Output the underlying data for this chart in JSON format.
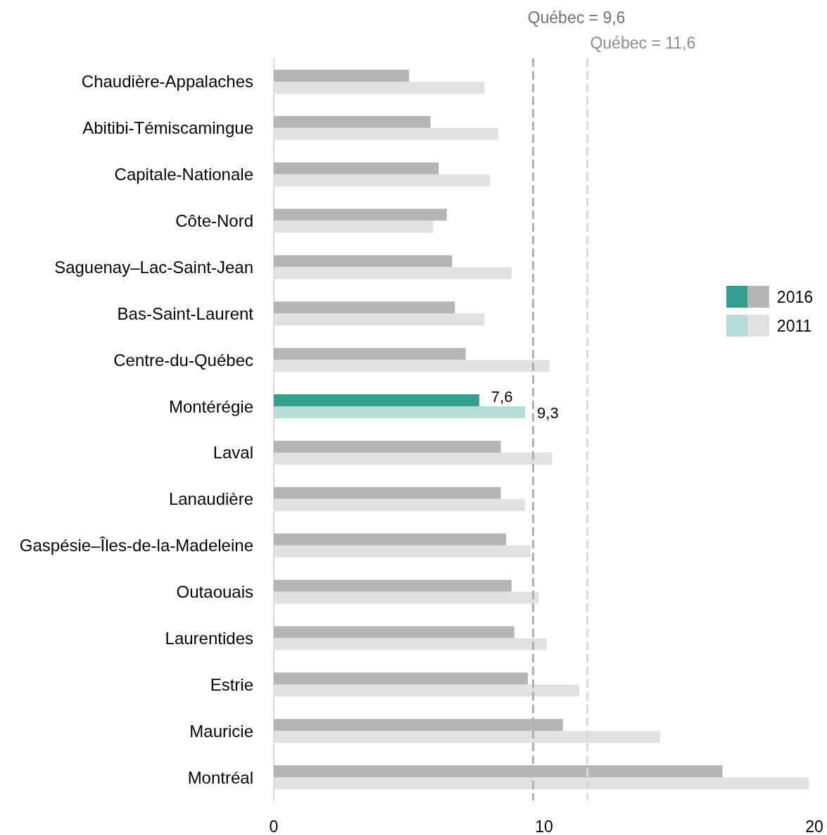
{
  "chart_data": {
    "type": "bar",
    "orientation": "horizontal",
    "categories": [
      "Chaudière-Appalaches",
      "Abitibi-Témiscamingue",
      "Capitale-Nationale",
      "Côte-Nord",
      "Saguenay–Lac-Saint-Jean",
      "Bas-Saint-Laurent",
      "Centre-du-Québec",
      "Montérégie",
      "Laval",
      "Lanaudière",
      "Gaspésie–Îles-de-la-Madeleine",
      "Outaouais",
      "Laurentides",
      "Estrie",
      "Mauricie",
      "Montréal"
    ],
    "series": [
      {
        "name": "2016",
        "color": "#b5b5b5",
        "colors": [
          "#b5b5b5",
          "#b5b5b5",
          "#b5b5b5",
          "#b5b5b5",
          "#b5b5b5",
          "#b5b5b5",
          "#b5b5b5",
          "#359e8f",
          "#b5b5b5",
          "#b5b5b5",
          "#b5b5b5",
          "#b5b5b5",
          "#b5b5b5",
          "#b5b5b5",
          "#b5b5b5",
          "#b5b5b5"
        ],
        "values": [
          5.0,
          5.8,
          6.1,
          6.4,
          6.6,
          6.7,
          7.1,
          7.6,
          8.4,
          8.4,
          8.6,
          8.8,
          8.9,
          9.4,
          10.7,
          16.6
        ],
        "value_labels": [
          null,
          null,
          null,
          null,
          null,
          null,
          null,
          "7,6",
          null,
          null,
          null,
          null,
          null,
          null,
          null,
          null
        ]
      },
      {
        "name": "2011",
        "color": "#e1e1e1",
        "colors": [
          "#e1e1e1",
          "#e1e1e1",
          "#e1e1e1",
          "#e1e1e1",
          "#e1e1e1",
          "#e1e1e1",
          "#e1e1e1",
          "#b5dcd7",
          "#e1e1e1",
          "#e1e1e1",
          "#e1e1e1",
          "#e1e1e1",
          "#e1e1e1",
          "#e1e1e1",
          "#e1e1e1",
          "#e1e1e1"
        ],
        "values": [
          7.8,
          8.3,
          8.0,
          5.9,
          8.8,
          7.8,
          10.2,
          9.3,
          10.3,
          9.3,
          9.5,
          9.8,
          10.1,
          11.3,
          14.3,
          19.8
        ],
        "value_labels": [
          null,
          null,
          null,
          null,
          null,
          null,
          null,
          "9,3",
          null,
          null,
          null,
          null,
          null,
          null,
          null,
          null
        ]
      }
    ],
    "xlim": [
      0,
      20
    ],
    "xticks": [
      0,
      10,
      20
    ],
    "ref_lines": [
      {
        "axis": "x",
        "value": 9.6,
        "label": "Québec = 9,6",
        "color": "#b0b0b0",
        "line_style": "dashed"
      },
      {
        "axis": "x",
        "value": 11.6,
        "label": "Québec = 11,6",
        "color": "#d9d9d9",
        "line_style": "dashed"
      }
    ],
    "legend": "right"
  }
}
